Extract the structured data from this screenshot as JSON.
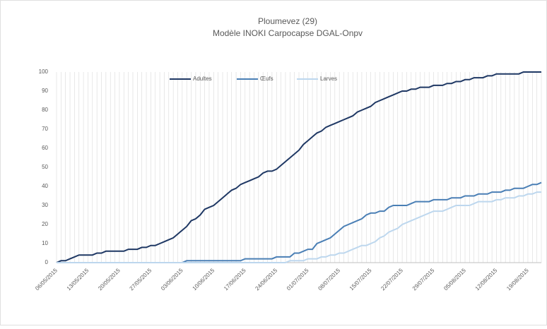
{
  "chart_data": {
    "type": "line",
    "title": "Ploumevez (29)",
    "subtitle": "Modèle INOKI Carpocapse DGAL-Onpv",
    "categories": [
      "06/05/2015",
      null,
      null,
      null,
      null,
      null,
      null,
      "13/05/2015",
      null,
      null,
      null,
      null,
      null,
      null,
      "20/05/2015",
      null,
      null,
      null,
      null,
      null,
      null,
      "27/05/2015",
      null,
      null,
      null,
      null,
      null,
      null,
      "03/06/2015",
      null,
      null,
      null,
      null,
      null,
      null,
      "10/06/2015",
      null,
      null,
      null,
      null,
      null,
      null,
      "17/06/2015",
      null,
      null,
      null,
      null,
      null,
      null,
      "24/06/2015",
      null,
      null,
      null,
      null,
      null,
      null,
      "01/07/2015",
      null,
      null,
      null,
      null,
      null,
      null,
      "08/07/2015",
      null,
      null,
      null,
      null,
      null,
      null,
      "15/07/2015",
      null,
      null,
      null,
      null,
      null,
      null,
      "22/07/2015",
      null,
      null,
      null,
      null,
      null,
      null,
      "29/07/2015",
      null,
      null,
      null,
      null,
      null,
      null,
      "05/08/2015",
      null,
      null,
      null,
      null,
      null,
      null,
      "12/08/2015",
      null,
      null,
      null,
      null,
      null,
      null,
      "19/08/2015",
      null,
      null,
      null
    ],
    "series": [
      {
        "name": "Adultes",
        "color": "#1f3864",
        "values": [
          0,
          1,
          1,
          2,
          3,
          4,
          4,
          4,
          4,
          5,
          5,
          6,
          6,
          6,
          6,
          6,
          7,
          7,
          7,
          8,
          8,
          9,
          9,
          10,
          11,
          12,
          13,
          15,
          17,
          19,
          22,
          23,
          25,
          28,
          29,
          30,
          32,
          34,
          36,
          38,
          39,
          41,
          42,
          43,
          44,
          45,
          47,
          48,
          48,
          49,
          51,
          53,
          55,
          57,
          59,
          62,
          64,
          66,
          68,
          69,
          71,
          72,
          73,
          74,
          75,
          76,
          77,
          79,
          80,
          81,
          82,
          84,
          85,
          86,
          87,
          88,
          89,
          90,
          90,
          91,
          91,
          92,
          92,
          92,
          93,
          93,
          93,
          94,
          94,
          95,
          95,
          96,
          96,
          97,
          97,
          97,
          98,
          98,
          99,
          99,
          99,
          99,
          99,
          99,
          100,
          100,
          100,
          100,
          100
        ]
      },
      {
        "name": "Œufs",
        "color": "#4a7fb5",
        "values": [
          0,
          0,
          0,
          0,
          0,
          0,
          0,
          0,
          0,
          0,
          0,
          0,
          0,
          0,
          0,
          0,
          0,
          0,
          0,
          0,
          0,
          0,
          0,
          0,
          0,
          0,
          0,
          0,
          0,
          1,
          1,
          1,
          1,
          1,
          1,
          1,
          1,
          1,
          1,
          1,
          1,
          1,
          2,
          2,
          2,
          2,
          2,
          2,
          2,
          3,
          3,
          3,
          3,
          5,
          5,
          6,
          7,
          7,
          10,
          11,
          12,
          13,
          15,
          17,
          19,
          20,
          21,
          22,
          23,
          25,
          26,
          26,
          27,
          27,
          29,
          30,
          30,
          30,
          30,
          31,
          32,
          32,
          32,
          32,
          33,
          33,
          33,
          33,
          34,
          34,
          34,
          35,
          35,
          35,
          36,
          36,
          36,
          37,
          37,
          37,
          38,
          38,
          39,
          39,
          39,
          40,
          41,
          41,
          42
        ]
      },
      {
        "name": "Larves",
        "color": "#bdd7ee",
        "values": [
          0,
          0,
          0,
          0,
          0,
          0,
          0,
          0,
          0,
          0,
          0,
          0,
          0,
          0,
          0,
          0,
          0,
          0,
          0,
          0,
          0,
          0,
          0,
          0,
          0,
          0,
          0,
          0,
          0,
          0,
          0,
          0,
          0,
          0,
          0,
          0,
          0,
          0,
          0,
          0,
          0,
          0,
          0,
          0,
          0,
          0,
          0,
          0,
          0,
          0,
          0,
          0,
          1,
          1,
          1,
          1,
          2,
          2,
          2,
          3,
          3,
          4,
          4,
          5,
          5,
          6,
          7,
          8,
          9,
          9,
          10,
          11,
          13,
          14,
          16,
          17,
          18,
          20,
          21,
          22,
          23,
          24,
          25,
          26,
          27,
          27,
          27,
          28,
          29,
          30,
          30,
          30,
          30,
          31,
          32,
          32,
          32,
          32,
          33,
          33,
          34,
          34,
          34,
          35,
          35,
          36,
          36,
          37,
          37
        ]
      }
    ],
    "ylim": [
      0,
      100
    ],
    "yticks": [
      0,
      10,
      20,
      30,
      40,
      50,
      60,
      70,
      80,
      90,
      100
    ],
    "xgrid": true,
    "legend": "top"
  }
}
